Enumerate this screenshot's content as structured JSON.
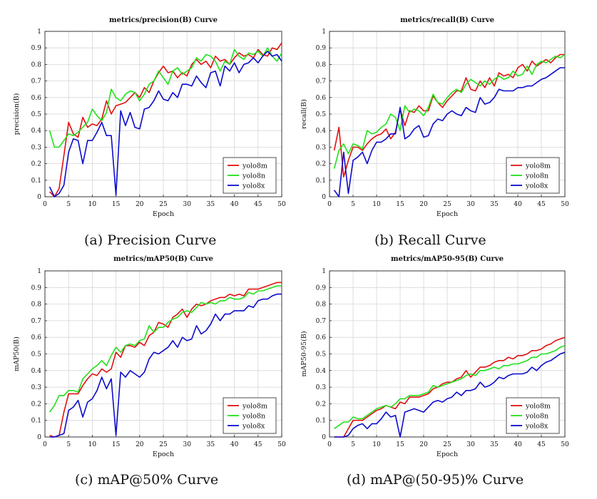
{
  "captions": {
    "a": "(a) Precision Curve",
    "b": "(b) Recall Curve",
    "c": "(c) mAP@50% Curve",
    "d": "(d) mAP@(50-95)% Curve"
  },
  "colors": {
    "yolo8m": "#e01010",
    "yolo8n": "#22e01a",
    "yolo8x": "#0b0bcc"
  },
  "chart_data": [
    {
      "type": "line",
      "title": "metrics/precision(B) Curve",
      "xlabel": "Epoch",
      "ylabel": "precision(B)",
      "xlim": [
        0,
        50
      ],
      "ylim": [
        0,
        1
      ],
      "xticks": [
        0,
        5,
        10,
        15,
        20,
        25,
        30,
        35,
        40,
        45,
        50
      ],
      "yticks": [
        0,
        0.1,
        0.2,
        0.3,
        0.4,
        0.5,
        0.6,
        0.7,
        0.8,
        0.9,
        1
      ],
      "ytick_labels": [
        "0",
        "0.1",
        "0.2",
        "0.3",
        "0.4",
        "0.5",
        "0.6",
        "0.7",
        "0.8",
        "0.9",
        "1"
      ],
      "legend_position": "bottom-right",
      "grid": true,
      "x": [
        1,
        2,
        3,
        4,
        5,
        6,
        7,
        8,
        9,
        10,
        11,
        12,
        13,
        14,
        15,
        16,
        17,
        18,
        19,
        20,
        21,
        22,
        23,
        24,
        25,
        26,
        27,
        28,
        29,
        30,
        31,
        32,
        33,
        34,
        35,
        36,
        37,
        38,
        39,
        40,
        41,
        42,
        43,
        44,
        45,
        46,
        47,
        48,
        49,
        50
      ],
      "series": [
        {
          "name": "yolo8m",
          "color": "#e01010",
          "values": [
            0.03,
            0.0,
            0.05,
            0.25,
            0.45,
            0.38,
            0.36,
            0.48,
            0.42,
            0.44,
            0.43,
            0.47,
            0.58,
            0.5,
            0.55,
            0.56,
            0.57,
            0.6,
            0.63,
            0.6,
            0.66,
            0.63,
            0.7,
            0.75,
            0.79,
            0.75,
            0.76,
            0.72,
            0.75,
            0.73,
            0.8,
            0.83,
            0.8,
            0.82,
            0.78,
            0.85,
            0.82,
            0.83,
            0.8,
            0.84,
            0.87,
            0.85,
            0.86,
            0.84,
            0.89,
            0.86,
            0.85,
            0.9,
            0.89,
            0.93
          ]
        },
        {
          "name": "yolo8n",
          "color": "#22e01a",
          "values": [
            0.4,
            0.3,
            0.3,
            0.34,
            0.38,
            0.37,
            0.39,
            0.42,
            0.45,
            0.53,
            0.49,
            0.46,
            0.51,
            0.65,
            0.6,
            0.58,
            0.62,
            0.64,
            0.63,
            0.58,
            0.62,
            0.68,
            0.7,
            0.76,
            0.72,
            0.68,
            0.76,
            0.78,
            0.74,
            0.76,
            0.78,
            0.84,
            0.82,
            0.86,
            0.85,
            0.82,
            0.76,
            0.82,
            0.8,
            0.89,
            0.85,
            0.83,
            0.87,
            0.86,
            0.88,
            0.85,
            0.9,
            0.85,
            0.82,
            0.87
          ]
        },
        {
          "name": "yolo8x",
          "color": "#0b0bcc",
          "values": [
            0.06,
            0.0,
            0.02,
            0.07,
            0.27,
            0.35,
            0.34,
            0.2,
            0.34,
            0.34,
            0.39,
            0.45,
            0.37,
            0.37,
            0.01,
            0.52,
            0.43,
            0.51,
            0.42,
            0.41,
            0.53,
            0.54,
            0.58,
            0.64,
            0.59,
            0.58,
            0.63,
            0.6,
            0.68,
            0.68,
            0.67,
            0.73,
            0.69,
            0.66,
            0.75,
            0.76,
            0.67,
            0.79,
            0.76,
            0.81,
            0.75,
            0.8,
            0.81,
            0.84,
            0.81,
            0.85,
            0.88,
            0.85,
            0.86,
            0.82
          ]
        }
      ]
    },
    {
      "type": "line",
      "title": "metrics/recall(B) Curve",
      "xlabel": "Epoch",
      "ylabel": "recall(B)",
      "xlim": [
        0,
        50
      ],
      "ylim": [
        0,
        1
      ],
      "xticks": [
        0,
        5,
        10,
        15,
        20,
        25,
        30,
        35,
        40,
        45,
        50
      ],
      "yticks": [
        0,
        0.1,
        0.2,
        0.3,
        0.4,
        0.5,
        0.6,
        0.7,
        0.8,
        0.9,
        1
      ],
      "ytick_labels": [
        "0",
        "0.1",
        "0.2",
        "0.3",
        "0.4",
        "0.5",
        "0.6",
        "0.7",
        "0.8",
        "0.9",
        "1"
      ],
      "legend_position": "bottom-right",
      "grid": true,
      "x": [
        1,
        2,
        3,
        4,
        5,
        6,
        7,
        8,
        9,
        10,
        11,
        12,
        13,
        14,
        15,
        16,
        17,
        18,
        19,
        20,
        21,
        22,
        23,
        24,
        25,
        26,
        27,
        28,
        29,
        30,
        31,
        32,
        33,
        34,
        35,
        36,
        37,
        38,
        39,
        40,
        41,
        42,
        43,
        44,
        45,
        46,
        47,
        48,
        49,
        50
      ],
      "series": [
        {
          "name": "yolo8m",
          "color": "#e01010",
          "values": [
            0.28,
            0.42,
            0.12,
            0.22,
            0.3,
            0.3,
            0.28,
            0.32,
            0.35,
            0.37,
            0.38,
            0.41,
            0.35,
            0.39,
            0.53,
            0.43,
            0.52,
            0.51,
            0.55,
            0.52,
            0.52,
            0.61,
            0.57,
            0.54,
            0.58,
            0.61,
            0.64,
            0.64,
            0.72,
            0.65,
            0.64,
            0.7,
            0.66,
            0.72,
            0.67,
            0.75,
            0.73,
            0.74,
            0.72,
            0.78,
            0.8,
            0.76,
            0.82,
            0.79,
            0.81,
            0.83,
            0.81,
            0.84,
            0.86,
            0.86
          ]
        },
        {
          "name": "yolo8n",
          "color": "#22e01a",
          "values": [
            0.17,
            0.28,
            0.32,
            0.26,
            0.32,
            0.31,
            0.29,
            0.4,
            0.38,
            0.39,
            0.42,
            0.44,
            0.5,
            0.48,
            0.4,
            0.55,
            0.51,
            0.53,
            0.52,
            0.49,
            0.54,
            0.62,
            0.57,
            0.56,
            0.6,
            0.63,
            0.65,
            0.63,
            0.68,
            0.71,
            0.69,
            0.67,
            0.7,
            0.68,
            0.71,
            0.73,
            0.71,
            0.72,
            0.76,
            0.73,
            0.74,
            0.79,
            0.74,
            0.8,
            0.82,
            0.81,
            0.83,
            0.85,
            0.84,
            0.86
          ]
        },
        {
          "name": "yolo8x",
          "color": "#0b0bcc",
          "values": [
            0.04,
            0.0,
            0.27,
            0.02,
            0.22,
            0.24,
            0.27,
            0.2,
            0.28,
            0.33,
            0.33,
            0.35,
            0.38,
            0.38,
            0.54,
            0.35,
            0.37,
            0.41,
            0.43,
            0.36,
            0.37,
            0.44,
            0.47,
            0.46,
            0.5,
            0.52,
            0.5,
            0.49,
            0.54,
            0.52,
            0.51,
            0.6,
            0.56,
            0.57,
            0.6,
            0.65,
            0.64,
            0.64,
            0.64,
            0.66,
            0.66,
            0.67,
            0.67,
            0.69,
            0.71,
            0.72,
            0.74,
            0.76,
            0.78,
            0.78
          ]
        }
      ]
    },
    {
      "type": "line",
      "title": "metrics/mAP50(B) Curve",
      "xlabel": "Epoch",
      "ylabel": "mAP50(B)",
      "xlim": [
        0,
        50
      ],
      "ylim": [
        0,
        1
      ],
      "xticks": [
        0,
        5,
        10,
        15,
        20,
        25,
        30,
        35,
        40,
        45,
        50
      ],
      "yticks": [
        0,
        0.1,
        0.2,
        0.3,
        0.4,
        0.5,
        0.6,
        0.7,
        0.8,
        0.9,
        1
      ],
      "ytick_labels": [
        "0",
        "0.1",
        "0.2",
        "0.3",
        "0.4",
        "0.5",
        "0.6",
        "0.7",
        "0.8",
        "0.9",
        "1"
      ],
      "legend_position": "bottom-right",
      "grid": true,
      "x": [
        1,
        2,
        3,
        4,
        5,
        6,
        7,
        8,
        9,
        10,
        11,
        12,
        13,
        14,
        15,
        16,
        17,
        18,
        19,
        20,
        21,
        22,
        23,
        24,
        25,
        26,
        27,
        28,
        29,
        30,
        31,
        32,
        33,
        34,
        35,
        36,
        37,
        38,
        39,
        40,
        41,
        42,
        43,
        44,
        45,
        46,
        47,
        48,
        49,
        50
      ],
      "series": [
        {
          "name": "yolo8m",
          "color": "#e01010",
          "values": [
            0.01,
            0.0,
            0.01,
            0.15,
            0.26,
            0.26,
            0.26,
            0.31,
            0.35,
            0.38,
            0.37,
            0.41,
            0.39,
            0.41,
            0.51,
            0.48,
            0.55,
            0.55,
            0.54,
            0.57,
            0.55,
            0.61,
            0.63,
            0.69,
            0.68,
            0.66,
            0.72,
            0.74,
            0.77,
            0.72,
            0.77,
            0.8,
            0.79,
            0.8,
            0.82,
            0.83,
            0.84,
            0.84,
            0.86,
            0.85,
            0.86,
            0.85,
            0.89,
            0.89,
            0.89,
            0.9,
            0.91,
            0.92,
            0.93,
            0.93
          ]
        },
        {
          "name": "yolo8n",
          "color": "#22e01a",
          "values": [
            0.15,
            0.19,
            0.25,
            0.25,
            0.28,
            0.28,
            0.27,
            0.35,
            0.38,
            0.41,
            0.43,
            0.46,
            0.43,
            0.49,
            0.54,
            0.51,
            0.55,
            0.56,
            0.55,
            0.58,
            0.59,
            0.67,
            0.63,
            0.66,
            0.66,
            0.69,
            0.71,
            0.72,
            0.75,
            0.76,
            0.75,
            0.78,
            0.81,
            0.8,
            0.81,
            0.8,
            0.82,
            0.82,
            0.84,
            0.83,
            0.83,
            0.84,
            0.87,
            0.86,
            0.88,
            0.88,
            0.89,
            0.9,
            0.91,
            0.91
          ]
        },
        {
          "name": "yolo8x",
          "color": "#0b0bcc",
          "values": [
            0.0,
            0.0,
            0.01,
            0.02,
            0.16,
            0.18,
            0.22,
            0.12,
            0.21,
            0.23,
            0.28,
            0.36,
            0.29,
            0.35,
            0.01,
            0.39,
            0.36,
            0.4,
            0.38,
            0.36,
            0.39,
            0.47,
            0.51,
            0.5,
            0.52,
            0.54,
            0.58,
            0.54,
            0.6,
            0.58,
            0.59,
            0.67,
            0.62,
            0.64,
            0.68,
            0.74,
            0.7,
            0.74,
            0.74,
            0.76,
            0.76,
            0.76,
            0.79,
            0.78,
            0.82,
            0.83,
            0.83,
            0.85,
            0.86,
            0.86
          ]
        }
      ]
    },
    {
      "type": "line",
      "title": "metrics/mAP50-95(B) Curve",
      "xlabel": "Epoch",
      "ylabel": "mAP50-95(B)",
      "xlim": [
        0,
        50
      ],
      "ylim": [
        0,
        1
      ],
      "xticks": [
        0,
        5,
        10,
        15,
        20,
        25,
        30,
        35,
        40,
        45,
        50
      ],
      "yticks": [
        0,
        0.1,
        0.2,
        0.3,
        0.4,
        0.5,
        0.6,
        0.7,
        0.8,
        0.9,
        1
      ],
      "ytick_labels": [
        "0",
        "0.1",
        "0.2",
        "0.3",
        "0.4",
        "0.5",
        "0.6",
        "0.7",
        "0.8",
        "0.9",
        "1"
      ],
      "legend_position": "bottom-right",
      "grid": true,
      "x": [
        1,
        2,
        3,
        4,
        5,
        6,
        7,
        8,
        9,
        10,
        11,
        12,
        13,
        14,
        15,
        16,
        17,
        18,
        19,
        20,
        21,
        22,
        23,
        24,
        25,
        26,
        27,
        28,
        29,
        30,
        31,
        32,
        33,
        34,
        35,
        36,
        37,
        38,
        39,
        40,
        41,
        42,
        43,
        44,
        45,
        46,
        47,
        48,
        49,
        50
      ],
      "series": [
        {
          "name": "yolo8m",
          "color": "#e01010",
          "values": [
            0.0,
            0.0,
            0.0,
            0.05,
            0.1,
            0.1,
            0.1,
            0.12,
            0.14,
            0.16,
            0.17,
            0.19,
            0.18,
            0.17,
            0.21,
            0.2,
            0.24,
            0.24,
            0.24,
            0.25,
            0.26,
            0.29,
            0.3,
            0.32,
            0.33,
            0.33,
            0.35,
            0.36,
            0.4,
            0.36,
            0.39,
            0.42,
            0.42,
            0.43,
            0.45,
            0.46,
            0.46,
            0.48,
            0.47,
            0.49,
            0.49,
            0.5,
            0.52,
            0.52,
            0.53,
            0.55,
            0.56,
            0.58,
            0.59,
            0.6
          ]
        },
        {
          "name": "yolo8n",
          "color": "#22e01a",
          "values": [
            0.05,
            0.07,
            0.09,
            0.09,
            0.12,
            0.11,
            0.11,
            0.13,
            0.15,
            0.17,
            0.18,
            0.19,
            0.18,
            0.2,
            0.23,
            0.23,
            0.25,
            0.25,
            0.25,
            0.26,
            0.27,
            0.31,
            0.3,
            0.31,
            0.32,
            0.33,
            0.34,
            0.35,
            0.37,
            0.38,
            0.37,
            0.4,
            0.4,
            0.41,
            0.42,
            0.41,
            0.43,
            0.43,
            0.44,
            0.44,
            0.45,
            0.46,
            0.48,
            0.48,
            0.5,
            0.5,
            0.51,
            0.52,
            0.54,
            0.55
          ]
        },
        {
          "name": "yolo8x",
          "color": "#0b0bcc",
          "values": [
            0.0,
            0.0,
            0.0,
            0.01,
            0.05,
            0.07,
            0.08,
            0.05,
            0.08,
            0.08,
            0.11,
            0.15,
            0.12,
            0.13,
            0.0,
            0.15,
            0.16,
            0.17,
            0.16,
            0.15,
            0.18,
            0.21,
            0.22,
            0.21,
            0.23,
            0.24,
            0.27,
            0.25,
            0.28,
            0.28,
            0.29,
            0.33,
            0.3,
            0.31,
            0.33,
            0.36,
            0.35,
            0.37,
            0.38,
            0.38,
            0.38,
            0.39,
            0.42,
            0.4,
            0.43,
            0.45,
            0.46,
            0.48,
            0.5,
            0.51
          ]
        }
      ]
    }
  ]
}
